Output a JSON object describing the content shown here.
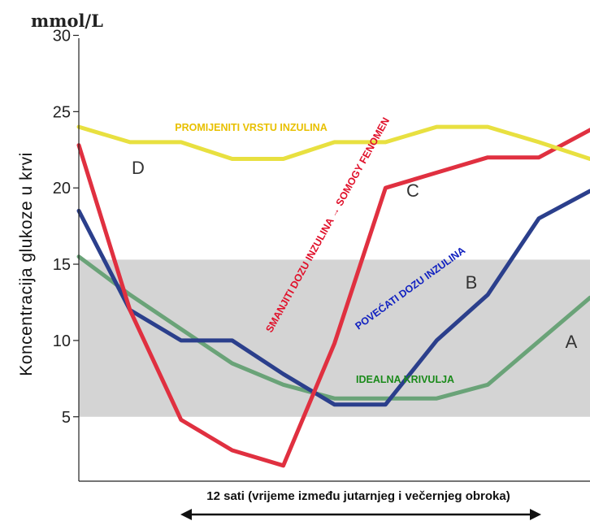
{
  "chart_data": {
    "type": "line",
    "y_unit": "mmol/L",
    "ylabel": "Koncentracija glukoze u krvi",
    "xlabel": "12 sati (vrijeme između jutarnjeg i večernjeg obroka)",
    "ylim": [
      0,
      30
    ],
    "yticks": [
      5,
      10,
      15,
      20,
      25,
      30
    ],
    "xlim": [
      0,
      12
    ],
    "target_band": [
      5,
      15.3
    ],
    "colors": {
      "band": "#d4d4d4",
      "A": "#6aa378",
      "B": "#2b3f8c",
      "C": "#e03040",
      "D": "#e8e040"
    },
    "series": [
      {
        "name": "A",
        "letter": "A",
        "color": "#6aa378",
        "x": [
          0,
          1.2,
          3.6,
          4.8,
          6.0,
          7.2,
          8.4,
          9.6,
          12.0
        ],
        "y": [
          15.5,
          13.0,
          8.5,
          7.1,
          6.2,
          6.2,
          6.2,
          7.1,
          12.8
        ]
      },
      {
        "name": "B",
        "letter": "B",
        "color": "#2b3f8c",
        "x": [
          0,
          1.2,
          2.4,
          3.6,
          4.8,
          6.0,
          7.2,
          8.4,
          9.6,
          10.8,
          12.0
        ],
        "y": [
          18.5,
          12.0,
          10.0,
          10.0,
          7.8,
          5.8,
          5.8,
          10.0,
          13.0,
          18.0,
          19.8
        ]
      },
      {
        "name": "C",
        "letter": "C",
        "color": "#e03040",
        "x": [
          0,
          1.2,
          2.4,
          3.6,
          4.8,
          6.0,
          7.2,
          8.4,
          9.6,
          10.8,
          12.0
        ],
        "y": [
          22.8,
          12.0,
          4.8,
          2.8,
          1.8,
          9.8,
          20.0,
          21.0,
          22.0,
          22.0,
          23.8
        ]
      },
      {
        "name": "D",
        "letter": "D",
        "color": "#e8e040",
        "x": [
          0,
          1.2,
          2.4,
          3.6,
          4.8,
          6.0,
          7.2,
          8.4,
          9.6,
          10.8,
          12.0
        ],
        "y": [
          24.0,
          23.0,
          23.0,
          21.9,
          21.9,
          23.0,
          23.0,
          24.0,
          24.0,
          23.0,
          21.9
        ]
      }
    ],
    "annotations": [
      {
        "text": "PROMIJENITI  VRSTU  INZULINA",
        "color": "#e8c000"
      },
      {
        "text": "SMANJITI  DOZU  INZULINA  →  SOMOGY FENOMEN",
        "color": "#e0102a"
      },
      {
        "text": "POVEĆATI DOZU INZULINA",
        "color": "#1020c0"
      },
      {
        "text": "IDEALNA  KRIVULJA",
        "color": "#1a8a1a"
      }
    ]
  }
}
